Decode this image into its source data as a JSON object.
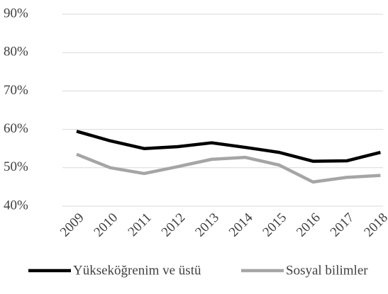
{
  "chart_data": {
    "type": "line",
    "categories": [
      "2009",
      "2010",
      "2011",
      "2012",
      "2013",
      "2014",
      "2015",
      "2016",
      "2017",
      "2018"
    ],
    "series": [
      {
        "name": "Yükseköğrenim ve üstü",
        "color": "#000000",
        "values": [
          59.5,
          57,
          55,
          55.5,
          56.5,
          55.3,
          54,
          51.7,
          51.8,
          54
        ]
      },
      {
        "name": "Sosyal bilimler",
        "color": "#a5a5a5",
        "values": [
          53.5,
          50,
          48.5,
          50.3,
          52.2,
          52.7,
          50.7,
          46.3,
          47.5,
          48
        ]
      }
    ],
    "ylim": [
      40,
      90
    ],
    "yticks": [
      {
        "value": 40,
        "label": "40%"
      },
      {
        "value": 50,
        "label": "50%"
      },
      {
        "value": 60,
        "label": "60%"
      },
      {
        "value": 70,
        "label": "70%"
      },
      {
        "value": 80,
        "label": "80%"
      },
      {
        "value": 90,
        "label": "90%"
      }
    ],
    "grid": true,
    "legend": "bottom"
  }
}
